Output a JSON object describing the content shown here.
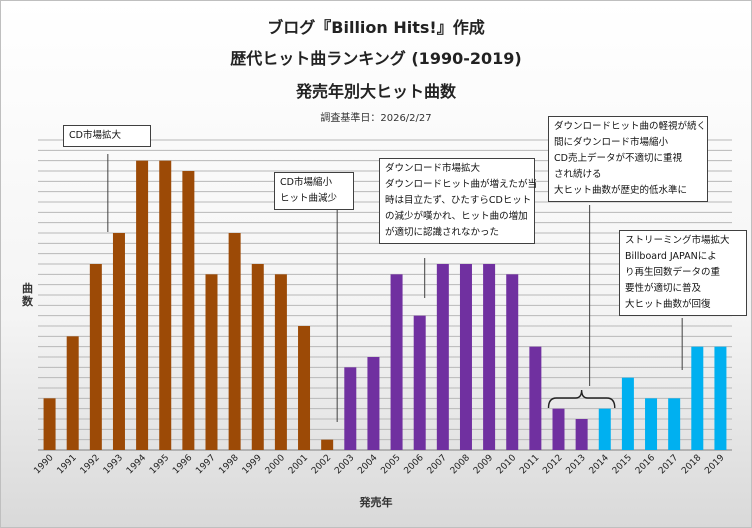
{
  "chart_data": {
    "type": "bar",
    "title_lines": [
      "ブログ『Billion Hits!』作成",
      "歴代ヒット曲ランキング (1990-2019)",
      "発売年別大ヒット曲数"
    ],
    "subtitle": "調査基準日：2026/2/27",
    "xlabel": "発売年",
    "ylabel": "曲数",
    "ylim": [
      0,
      30
    ],
    "grid": true,
    "categories": [
      "1990",
      "1991",
      "1992",
      "1993",
      "1994",
      "1995",
      "1996",
      "1997",
      "1998",
      "1999",
      "2000",
      "2001",
      "2002",
      "2003",
      "2004",
      "2005",
      "2006",
      "2007",
      "2008",
      "2009",
      "2010",
      "2011",
      "2012",
      "2013",
      "2014",
      "2015",
      "2016",
      "2017",
      "2018",
      "2019"
    ],
    "values": [
      5,
      11,
      18,
      21,
      28,
      28,
      27,
      17,
      21,
      18,
      17,
      12,
      1,
      8,
      9,
      17,
      13,
      18,
      18,
      18,
      17,
      10,
      4,
      3,
      4,
      7,
      5,
      5,
      10,
      10
    ],
    "colors": [
      "#9c4a06",
      "#9c4a06",
      "#9c4a06",
      "#9c4a06",
      "#9c4a06",
      "#9c4a06",
      "#9c4a06",
      "#9c4a06",
      "#9c4a06",
      "#9c4a06",
      "#9c4a06",
      "#9c4a06",
      "#9c4a06",
      "#7030a0",
      "#7030a0",
      "#7030a0",
      "#7030a0",
      "#7030a0",
      "#7030a0",
      "#7030a0",
      "#7030a0",
      "#7030a0",
      "#7030a0",
      "#7030a0",
      "#00b0f0",
      "#00b0f0",
      "#00b0f0",
      "#00b0f0",
      "#00b0f0",
      "#00b0f0"
    ],
    "annotations": [
      {
        "id": "cd-expand",
        "lines": [
          "CD市場拡大"
        ],
        "year": "1992"
      },
      {
        "id": "cd-shrink",
        "lines": [
          "CD市場縮小",
          "ヒット曲減少"
        ],
        "year": "2002"
      },
      {
        "id": "dl-expand",
        "lines": [
          "ダウンロード市場拡大",
          "ダウンロードヒット曲が増えたが当",
          "時は目立たず、ひたすらCDヒット",
          "の減少が嘆かれ、ヒット曲の増加",
          "が適切に認識されなかった"
        ],
        "year": "2006"
      },
      {
        "id": "dl-shrink",
        "lines": [
          "ダウンロードヒット曲の軽視が続く",
          "間にダウンロード市場縮小",
          "CD売上データが不適切に重視",
          "され続ける",
          "大ヒット曲数が歴史的低水準に"
        ],
        "year": "2013"
      },
      {
        "id": "streaming",
        "lines": [
          "ストリーミング市場拡大",
          "Billboard JAPANによ",
          "り再生回数データの重",
          "要性が適切に普及",
          "大ヒット曲数が回復"
        ],
        "year": "2017"
      }
    ]
  }
}
